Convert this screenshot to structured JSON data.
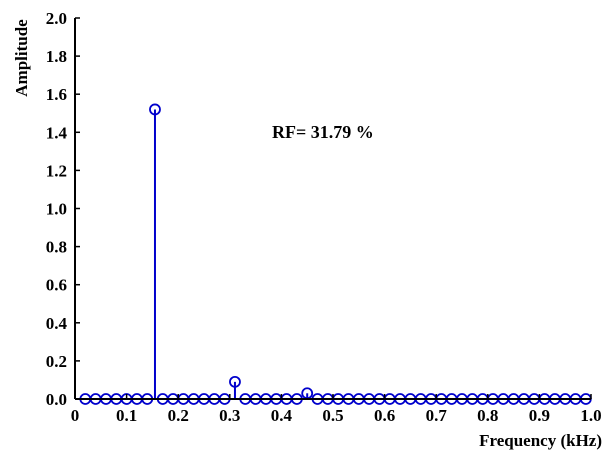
{
  "chart_data": {
    "type": "stem",
    "xlabel": "Frequency (kHz)",
    "ylabel": "Amplitude",
    "xlim": [
      0,
      1.0
    ],
    "ylim": [
      0,
      2.0
    ],
    "x_ticks": [
      "0",
      "0.1",
      "0.2",
      "0.3",
      "0.4",
      "0.5",
      "0.6",
      "0.7",
      "0.8",
      "0.9",
      "1.0"
    ],
    "y_ticks": [
      "0.0",
      "0.2",
      "0.4",
      "0.6",
      "0.8",
      "1.0",
      "1.2",
      "1.4",
      "1.6",
      "1.8",
      "2.0"
    ],
    "annotation": "RF= 31.79 %",
    "grid": false,
    "colors": {
      "stem": "#0000cc",
      "axis": "#000000"
    },
    "x": [
      0.02,
      0.04,
      0.06,
      0.08,
      0.1,
      0.12,
      0.14,
      0.155,
      0.17,
      0.19,
      0.21,
      0.23,
      0.25,
      0.27,
      0.29,
      0.31,
      0.33,
      0.35,
      0.37,
      0.39,
      0.41,
      0.43,
      0.45,
      0.47,
      0.49,
      0.51,
      0.53,
      0.55,
      0.57,
      0.59,
      0.61,
      0.63,
      0.65,
      0.67,
      0.69,
      0.71,
      0.73,
      0.75,
      0.77,
      0.79,
      0.81,
      0.83,
      0.85,
      0.87,
      0.89,
      0.91,
      0.93,
      0.95,
      0.97,
      0.99
    ],
    "values": [
      0,
      0,
      0,
      0,
      0,
      0,
      0,
      1.52,
      0,
      0,
      0,
      0,
      0,
      0,
      0,
      0.09,
      0,
      0,
      0,
      0,
      0,
      0,
      0.03,
      0,
      0,
      0,
      0,
      0,
      0,
      0,
      0,
      0,
      0,
      0,
      0,
      0,
      0,
      0,
      0,
      0,
      0,
      0,
      0,
      0,
      0,
      0,
      0,
      0,
      0,
      0
    ]
  }
}
